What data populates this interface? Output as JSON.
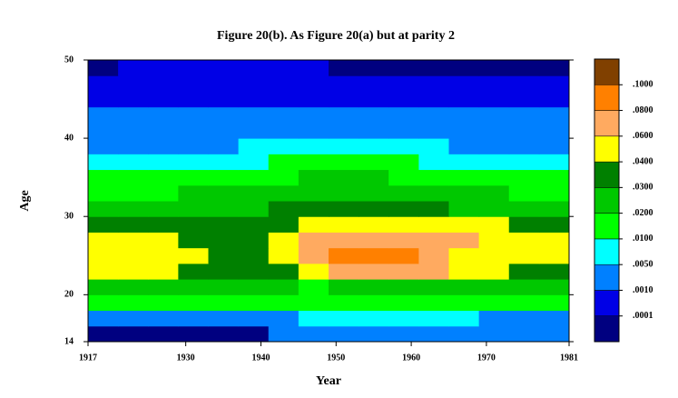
{
  "chart_data": {
    "type": "heatmap",
    "title": "Figure 20(b). As Figure 20(a) but at parity 2",
    "xlabel": "Year",
    "ylabel": "Age",
    "xlim": [
      1917,
      1981
    ],
    "xticks": [
      1917,
      1930,
      1940,
      1950,
      1960,
      1970,
      1981
    ],
    "ylim": [
      14,
      50
    ],
    "yticks": [
      14,
      20,
      30,
      40,
      50
    ],
    "cell_width": 4,
    "cell_height": 2,
    "x": [
      1917,
      1921,
      1925,
      1929,
      1933,
      1937,
      1941,
      1945,
      1949,
      1953,
      1957,
      1961,
      1965,
      1969,
      1973,
      1977
    ],
    "y": [
      14,
      16,
      18,
      20,
      22,
      24,
      26,
      28,
      30,
      32,
      34,
      36,
      38,
      40,
      42,
      44,
      46,
      48
    ],
    "levels": [
      {
        "value": 0.0001,
        "label": ".0001"
      },
      {
        "value": 0.001,
        "label": ".0010"
      },
      {
        "value": 0.005,
        "label": ".0050"
      },
      {
        "value": 0.01,
        "label": ".0100"
      },
      {
        "value": 0.02,
        "label": ".0200"
      },
      {
        "value": 0.03,
        "label": ".0300"
      },
      {
        "value": 0.04,
        "label": ".0400"
      },
      {
        "value": 0.06,
        "label": ".0600"
      },
      {
        "value": 0.08,
        "label": ".0800"
      },
      {
        "value": 0.1,
        "label": ".1000"
      }
    ],
    "colors": [
      "#000080",
      "#0000e6",
      "#0080ff",
      "#00ffff",
      "#00ff00",
      "#00c800",
      "#008000",
      "#ffff00",
      "#ffaa60",
      "#ff8000",
      "#804000"
    ],
    "z": [
      [
        5e-05,
        5e-05,
        5e-05,
        5e-05,
        5e-05,
        5e-05,
        0.003,
        0.003,
        0.003,
        0.003,
        0.003,
        0.003,
        0.003,
        0.003,
        0.003,
        0.003
      ],
      [
        0.003,
        0.003,
        0.003,
        0.003,
        0.003,
        0.003,
        0.003,
        0.007,
        0.007,
        0.007,
        0.007,
        0.007,
        0.007,
        0.003,
        0.003,
        0.003
      ],
      [
        0.015,
        0.015,
        0.015,
        0.015,
        0.015,
        0.015,
        0.015,
        0.015,
        0.015,
        0.015,
        0.015,
        0.015,
        0.015,
        0.015,
        0.015,
        0.015
      ],
      [
        0.025,
        0.025,
        0.025,
        0.025,
        0.025,
        0.025,
        0.025,
        0.015,
        0.025,
        0.025,
        0.025,
        0.025,
        0.025,
        0.025,
        0.025,
        0.025
      ],
      [
        0.05,
        0.05,
        0.05,
        0.035,
        0.035,
        0.035,
        0.035,
        0.05,
        0.07,
        0.07,
        0.07,
        0.07,
        0.05,
        0.05,
        0.035,
        0.035
      ],
      [
        0.05,
        0.05,
        0.05,
        0.05,
        0.035,
        0.035,
        0.05,
        0.07,
        0.09,
        0.09,
        0.09,
        0.07,
        0.05,
        0.05,
        0.05,
        0.05
      ],
      [
        0.05,
        0.05,
        0.05,
        0.035,
        0.035,
        0.035,
        0.05,
        0.07,
        0.07,
        0.07,
        0.07,
        0.07,
        0.07,
        0.05,
        0.05,
        0.05
      ],
      [
        0.035,
        0.035,
        0.035,
        0.035,
        0.035,
        0.035,
        0.035,
        0.05,
        0.05,
        0.05,
        0.05,
        0.05,
        0.05,
        0.05,
        0.035,
        0.035
      ],
      [
        0.025,
        0.025,
        0.025,
        0.025,
        0.025,
        0.025,
        0.035,
        0.035,
        0.035,
        0.035,
        0.035,
        0.035,
        0.025,
        0.025,
        0.025,
        0.025
      ],
      [
        0.015,
        0.015,
        0.015,
        0.025,
        0.025,
        0.025,
        0.025,
        0.025,
        0.025,
        0.025,
        0.025,
        0.025,
        0.025,
        0.025,
        0.015,
        0.015
      ],
      [
        0.015,
        0.015,
        0.015,
        0.015,
        0.015,
        0.015,
        0.015,
        0.025,
        0.025,
        0.025,
        0.015,
        0.015,
        0.015,
        0.015,
        0.015,
        0.015
      ],
      [
        0.007,
        0.007,
        0.007,
        0.007,
        0.007,
        0.007,
        0.015,
        0.015,
        0.015,
        0.015,
        0.015,
        0.007,
        0.007,
        0.007,
        0.007,
        0.007
      ],
      [
        0.003,
        0.003,
        0.003,
        0.003,
        0.003,
        0.007,
        0.007,
        0.007,
        0.007,
        0.007,
        0.007,
        0.007,
        0.003,
        0.003,
        0.003,
        0.003
      ],
      [
        0.003,
        0.003,
        0.003,
        0.003,
        0.003,
        0.003,
        0.003,
        0.003,
        0.003,
        0.003,
        0.003,
        0.003,
        0.003,
        0.003,
        0.003,
        0.003
      ],
      [
        0.003,
        0.003,
        0.003,
        0.003,
        0.003,
        0.003,
        0.003,
        0.003,
        0.003,
        0.003,
        0.003,
        0.003,
        0.003,
        0.003,
        0.003,
        0.003
      ],
      [
        0.0005,
        0.0005,
        0.0005,
        0.0005,
        0.0005,
        0.0005,
        0.0005,
        0.0005,
        0.0005,
        0.0005,
        0.0005,
        0.0005,
        0.0005,
        0.0005,
        0.0005,
        0.0005
      ],
      [
        0.0005,
        0.0005,
        0.0005,
        0.0005,
        0.0005,
        0.0005,
        0.0005,
        0.0005,
        0.0005,
        0.0005,
        0.0005,
        0.0005,
        0.0005,
        0.0005,
        0.0005,
        0.0005
      ],
      [
        5e-05,
        0.0005,
        0.0005,
        0.0005,
        0.0005,
        0.0005,
        0.0005,
        0.0005,
        5e-05,
        5e-05,
        5e-05,
        5e-05,
        5e-05,
        5e-05,
        5e-05,
        5e-05
      ]
    ]
  }
}
